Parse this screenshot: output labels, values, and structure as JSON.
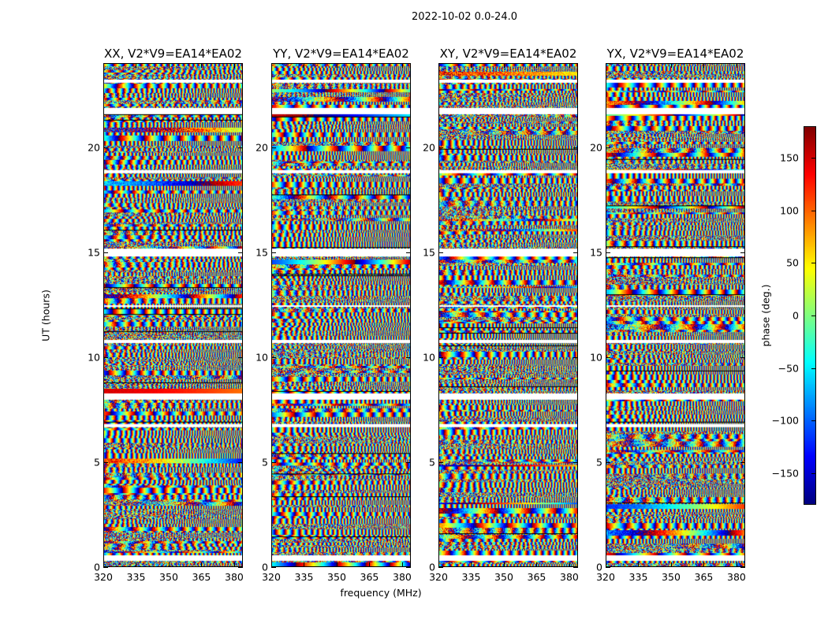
{
  "chart_data": {
    "type": "heatmap",
    "suptitle": "2022-10-02 0.0-24.0",
    "xlabel": "frequency (MHz)",
    "ylabel": "UT (hours)",
    "xlim": [
      320,
      384
    ],
    "ylim": [
      0,
      24
    ],
    "xticks": [
      "320",
      "335",
      "350",
      "365",
      "380"
    ],
    "xtick_values": [
      320,
      335,
      350,
      365,
      380
    ],
    "yticks": [
      "0",
      "5",
      "10",
      "15",
      "20"
    ],
    "ytick_values": [
      0,
      5,
      10,
      15,
      20
    ],
    "panels": [
      {
        "title": "XX, V2*V9=EA14*EA02",
        "seed": 11
      },
      {
        "title": "YY, V2*V9=EA14*EA02",
        "seed": 23
      },
      {
        "title": "XY, V2*V9=EA14*EA02",
        "seed": 37
      },
      {
        "title": "YX, V2*V9=EA14*EA02",
        "seed": 51
      }
    ],
    "flagged_hours": [
      [
        0.3,
        0.55
      ],
      [
        6.65,
        6.8
      ],
      [
        8.0,
        8.3
      ],
      [
        10.7,
        10.85
      ],
      [
        12.4,
        12.5
      ],
      [
        14.8,
        15.2
      ],
      [
        18.8,
        18.95
      ],
      [
        21.6,
        21.9
      ],
      [
        23.1,
        23.25
      ]
    ],
    "colorbar": {
      "label": "phase (deg.)",
      "range": [
        -180,
        180
      ],
      "ticks": [
        "-150",
        "-100",
        "-50",
        "0",
        "50",
        "100",
        "150"
      ],
      "tick_values": [
        -150,
        -100,
        -50,
        0,
        50,
        100,
        150
      ],
      "colormap": "jet"
    }
  }
}
